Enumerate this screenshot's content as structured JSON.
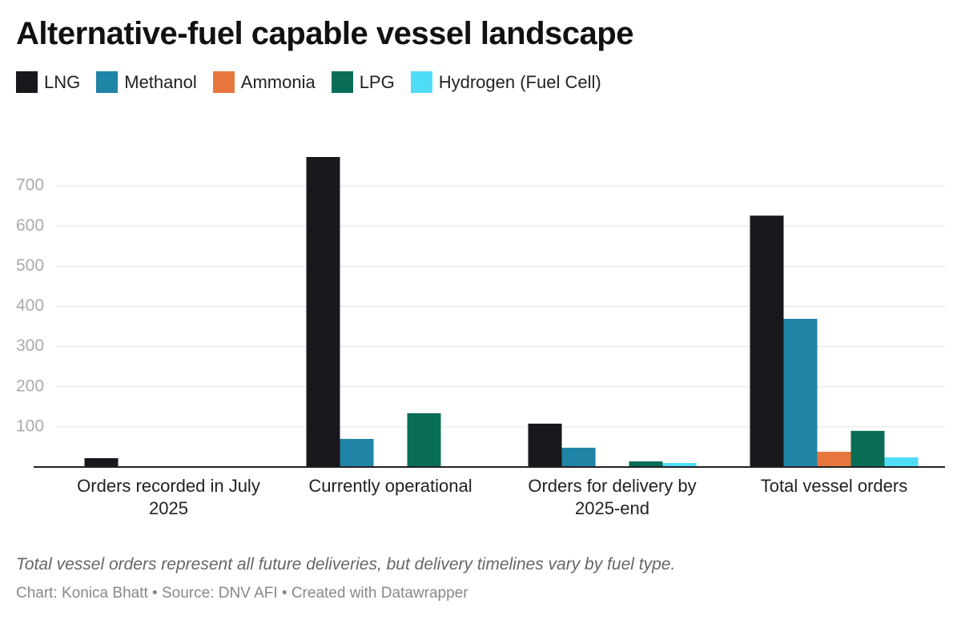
{
  "chart_data": {
    "type": "grouped-bar",
    "title": "Alternative-fuel capable vessel landscape",
    "note": "Total vessel orders represent all future deliveries, but delivery timelines vary by fuel type.",
    "credit": "Chart: Konica Bhatt • Source: DNV AFI • Created with Datawrapper",
    "categories": [
      "Orders recorded in July 2025",
      "Currently operational",
      "Orders for delivery by 2025-end",
      "Total vessel orders"
    ],
    "series": [
      {
        "name": "LNG",
        "color": "#18171c",
        "values": [
          22,
          772,
          108,
          626
        ]
      },
      {
        "name": "Methanol",
        "color": "#1f84a6",
        "values": [
          2,
          70,
          48,
          369
        ]
      },
      {
        "name": "Ammonia",
        "color": "#e8773d",
        "values": [
          0,
          1,
          0,
          38
        ]
      },
      {
        "name": "LPG",
        "color": "#0a6e57",
        "values": [
          0,
          134,
          14,
          90
        ]
      },
      {
        "name": "Hydrogen (Fuel Cell)",
        "color": "#4fdcf7",
        "values": [
          0,
          2,
          10,
          24
        ]
      }
    ],
    "ylim": [
      0,
      780
    ],
    "yticks": [
      100,
      200,
      300,
      400,
      500,
      600,
      700
    ],
    "grid": true
  }
}
